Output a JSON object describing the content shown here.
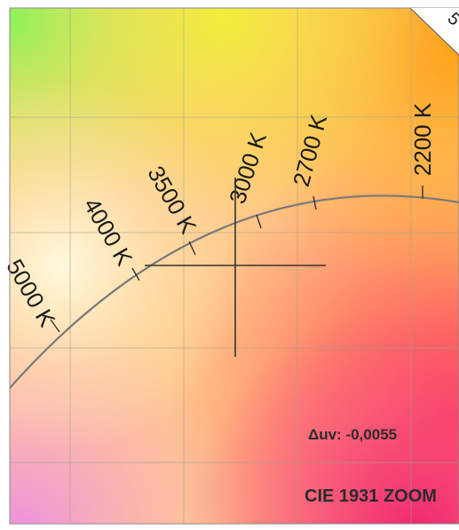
{
  "diagram": {
    "title": "CIE 1931 ZOOM",
    "delta_uv": "Δuv: -0,0055",
    "corner_tag": "5",
    "cct_ticks": [
      {
        "label": "5000 K"
      },
      {
        "label": "4000 K"
      },
      {
        "label": "3500 K"
      },
      {
        "label": "3000 K"
      },
      {
        "label": "2700 K"
      },
      {
        "label": "2200 K"
      }
    ],
    "colors": {
      "locus": "#7a7a7a",
      "grid": "#9aa088",
      "crosshair": "#333333",
      "frame": "#8a8a8a"
    }
  }
}
